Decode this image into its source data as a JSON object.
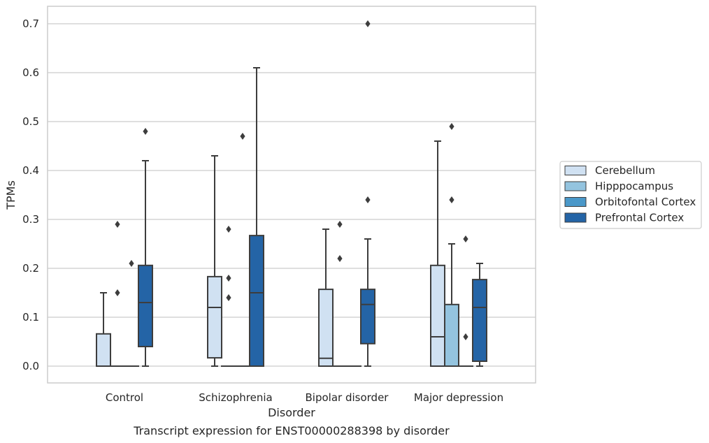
{
  "chart_data": {
    "type": "box",
    "title": "",
    "caption": "Transcript expression for ENST00000288398 by disorder",
    "xlabel": "Disorder",
    "ylabel": "TPMs",
    "ylim": [
      -0.034,
      0.735
    ],
    "yticks": [
      "0.0",
      "0.1",
      "0.2",
      "0.3",
      "0.4",
      "0.5",
      "0.6",
      "0.7"
    ],
    "grid": "horizontal",
    "legend_position": "right",
    "categories": [
      "Control",
      "Schizophrenia",
      "Bipolar disorder",
      "Major depression"
    ],
    "series": [
      {
        "name": "Cerebellum",
        "color": "#d0e1f2",
        "boxes": [
          {
            "q1": 0,
            "median": 0,
            "q3": 0.066,
            "whisker_low": 0,
            "whisker_high": 0.15,
            "outliers": []
          },
          {
            "q1": 0.017,
            "median": 0.12,
            "q3": 0.183,
            "whisker_low": 0,
            "whisker_high": 0.43,
            "outliers": []
          },
          {
            "q1": 0,
            "median": 0.016,
            "q3": 0.157,
            "whisker_low": 0,
            "whisker_high": 0.28,
            "outliers": []
          },
          {
            "q1": 0,
            "median": 0.06,
            "q3": 0.206,
            "whisker_low": 0,
            "whisker_high": 0.46,
            "outliers": []
          }
        ]
      },
      {
        "name": "Hipppocampus",
        "color": "#94c4df",
        "boxes": [
          {
            "q1": 0,
            "median": 0,
            "q3": 0,
            "whisker_low": 0,
            "whisker_high": 0,
            "outliers": [
              0.15,
              0.29
            ]
          },
          {
            "q1": 0,
            "median": 0,
            "q3": 0,
            "whisker_low": 0,
            "whisker_high": 0,
            "outliers": [
              0.14,
              0.18,
              0.28
            ]
          },
          {
            "q1": 0,
            "median": 0,
            "q3": 0,
            "whisker_low": 0,
            "whisker_high": 0,
            "outliers": [
              0.22,
              0.29
            ]
          },
          {
            "q1": 0,
            "median": 0,
            "q3": 0.126,
            "whisker_low": 0,
            "whisker_high": 0.25,
            "outliers": [
              0.34,
              0.49
            ]
          }
        ]
      },
      {
        "name": "Orbitofontal Cortex",
        "color": "#4a98c9",
        "boxes": [
          {
            "q1": 0,
            "median": 0,
            "q3": 0,
            "whisker_low": 0,
            "whisker_high": 0,
            "outliers": [
              0.21
            ]
          },
          {
            "q1": 0,
            "median": 0,
            "q3": 0,
            "whisker_low": 0,
            "whisker_high": 0,
            "outliers": [
              0.47
            ]
          },
          {
            "q1": 0,
            "median": 0,
            "q3": 0,
            "whisker_low": 0,
            "whisker_high": 0,
            "outliers": []
          },
          {
            "q1": 0,
            "median": 0,
            "q3": 0,
            "whisker_low": 0,
            "whisker_high": 0,
            "outliers": [
              0.06,
              0.26
            ]
          }
        ]
      },
      {
        "name": "Prefrontal Cortex",
        "color": "#2464a6",
        "boxes": [
          {
            "q1": 0.04,
            "median": 0.13,
            "q3": 0.206,
            "whisker_low": 0,
            "whisker_high": 0.42,
            "outliers": [
              0.48
            ]
          },
          {
            "q1": 0,
            "median": 0.15,
            "q3": 0.267,
            "whisker_low": 0,
            "whisker_high": 0.61,
            "outliers": []
          },
          {
            "q1": 0.046,
            "median": 0.126,
            "q3": 0.157,
            "whisker_low": 0,
            "whisker_high": 0.26,
            "outliers": [
              0.34,
              0.7
            ]
          },
          {
            "q1": 0.01,
            "median": 0.12,
            "q3": 0.177,
            "whisker_low": 0,
            "whisker_high": 0.21,
            "outliers": []
          }
        ]
      }
    ]
  }
}
